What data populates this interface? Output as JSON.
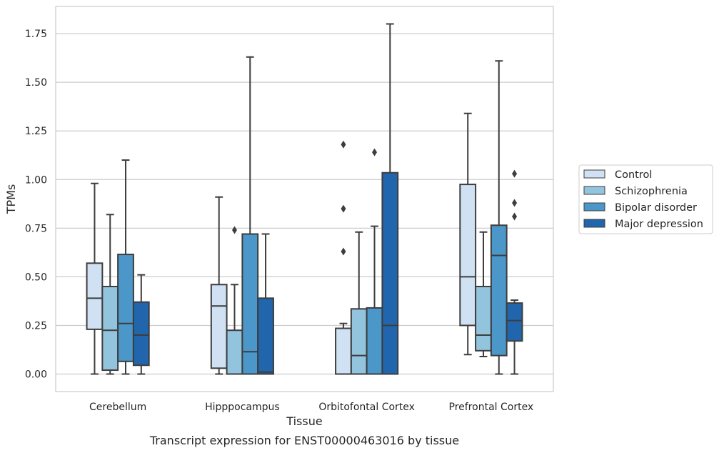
{
  "chart_data": {
    "type": "box",
    "title": "",
    "xlabel": "Tissue",
    "ylabel": "TPMs",
    "caption": "Transcript expression for ENST00000463016 by tissue",
    "ylim": [
      -0.09,
      1.89
    ],
    "yticks": [
      "0.00",
      "0.25",
      "0.50",
      "0.75",
      "1.00",
      "1.25",
      "1.50",
      "1.75"
    ],
    "grid": "horizontal",
    "legend_position": "right",
    "categories": [
      "Cerebellum",
      "Hipppocampus",
      "Orbitofontal Cortex",
      "Prefrontal Cortex"
    ],
    "series": [
      {
        "name": "Control",
        "color": "#cfe1f2",
        "boxes": [
          {
            "whisker_low": 0.0,
            "q1": 0.23,
            "median": 0.39,
            "q3": 0.57,
            "whisker_high": 0.98,
            "outliers": []
          },
          {
            "whisker_low": 0.0,
            "q1": 0.03,
            "median": 0.35,
            "q3": 0.46,
            "whisker_high": 0.91,
            "outliers": []
          },
          {
            "whisker_low": 0.0,
            "q1": 0.0,
            "median": 0.0,
            "q3": 0.235,
            "whisker_high": 0.26,
            "outliers": [
              0.63,
              0.85,
              1.18
            ]
          },
          {
            "whisker_low": 0.1,
            "q1": 0.25,
            "median": 0.5,
            "q3": 0.975,
            "whisker_high": 1.34,
            "outliers": []
          }
        ]
      },
      {
        "name": "Schizophrenia",
        "color": "#93c4de",
        "boxes": [
          {
            "whisker_low": 0.0,
            "q1": 0.02,
            "median": 0.225,
            "q3": 0.45,
            "whisker_high": 0.82,
            "outliers": []
          },
          {
            "whisker_low": 0.0,
            "q1": 0.0,
            "median": 0.0,
            "q3": 0.225,
            "whisker_high": 0.46,
            "outliers": [
              0.74
            ]
          },
          {
            "whisker_low": 0.0,
            "q1": 0.0,
            "median": 0.095,
            "q3": 0.335,
            "whisker_high": 0.73,
            "outliers": []
          },
          {
            "whisker_low": 0.09,
            "q1": 0.12,
            "median": 0.2,
            "q3": 0.45,
            "whisker_high": 0.73,
            "outliers": []
          }
        ]
      },
      {
        "name": "Bipolar disorder",
        "color": "#4b97c9",
        "boxes": [
          {
            "whisker_low": 0.0,
            "q1": 0.065,
            "median": 0.26,
            "q3": 0.615,
            "whisker_high": 1.1,
            "outliers": []
          },
          {
            "whisker_low": 0.0,
            "q1": 0.0,
            "median": 0.115,
            "q3": 0.72,
            "whisker_high": 1.63,
            "outliers": []
          },
          {
            "whisker_low": 0.0,
            "q1": 0.0,
            "median": 0.0,
            "q3": 0.34,
            "whisker_high": 0.76,
            "outliers": [
              1.14
            ]
          },
          {
            "whisker_low": 0.0,
            "q1": 0.095,
            "median": 0.61,
            "q3": 0.765,
            "whisker_high": 1.61,
            "outliers": []
          }
        ]
      },
      {
        "name": "Major depression",
        "color": "#2166ac",
        "boxes": [
          {
            "whisker_low": 0.0,
            "q1": 0.045,
            "median": 0.2,
            "q3": 0.37,
            "whisker_high": 0.51,
            "outliers": []
          },
          {
            "whisker_low": 0.0,
            "q1": 0.0,
            "median": 0.01,
            "q3": 0.39,
            "whisker_high": 0.72,
            "outliers": []
          },
          {
            "whisker_low": 0.0,
            "q1": 0.0,
            "median": 0.25,
            "q3": 1.035,
            "whisker_high": 1.8,
            "outliers": []
          },
          {
            "whisker_low": 0.0,
            "q1": 0.17,
            "median": 0.275,
            "q3": 0.365,
            "whisker_high": 0.38,
            "outliers": [
              0.81,
              0.88,
              1.03
            ]
          }
        ]
      }
    ]
  }
}
